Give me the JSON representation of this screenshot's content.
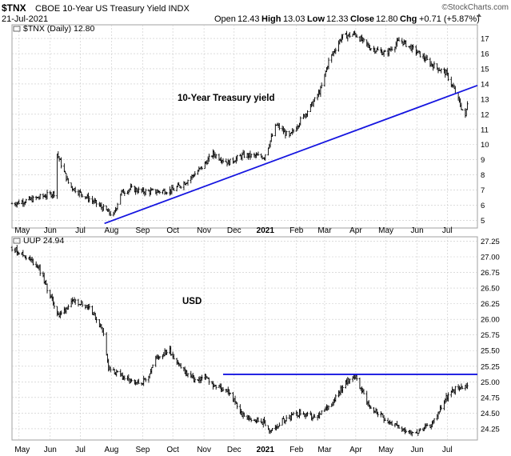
{
  "header": {
    "symbol": "$TNX",
    "description": "CBOE 10-Year US Treasury Yield INDX",
    "watermark": "©StockCharts.com",
    "date": "21-Jul-2021",
    "open_label": "Open",
    "open": "12.43",
    "high_label": "High",
    "high": "13.03",
    "low_label": "Low",
    "low": "12.33",
    "close_label": "Close",
    "close": "12.80",
    "chg_label": "Chg",
    "chg": "+0.71 (+5.87%)"
  },
  "x_axis": {
    "labels": [
      "May",
      "Jun",
      "Jul",
      "Aug",
      "Sep",
      "Oct",
      "Nov",
      "Dec",
      "2021",
      "Feb",
      "Mar",
      "Apr",
      "May",
      "Jun",
      "Jul"
    ]
  },
  "colors": {
    "price": "#000000",
    "trendline": "#1515e0",
    "grid": "#c8c8c8",
    "frame": "#a0a0a0",
    "chg_up": "#000000"
  },
  "chart_data": [
    {
      "type": "line",
      "legend": "$TNX (Daily) 12.80",
      "annotation": "10-Year Treasury yield",
      "ylim": [
        4.5,
        17.9
      ],
      "y_ticks": [
        5,
        6,
        7,
        8,
        9,
        10,
        11,
        12,
        13,
        14,
        15,
        16,
        17
      ],
      "grid": true,
      "x": [
        "2020-04-24",
        "2020-05-15",
        "2020-06-05",
        "2020-06-08",
        "2020-06-20",
        "2020-07-01",
        "2020-07-15",
        "2020-08-03",
        "2020-08-10",
        "2020-08-20",
        "2020-09-01",
        "2020-09-15",
        "2020-10-01",
        "2020-10-15",
        "2020-10-30",
        "2020-11-10",
        "2020-11-25",
        "2020-12-10",
        "2020-12-31",
        "2021-01-12",
        "2021-01-25",
        "2021-02-05",
        "2021-02-15",
        "2021-02-25",
        "2021-03-05",
        "2021-03-18",
        "2021-03-31",
        "2021-04-15",
        "2021-05-01",
        "2021-05-15",
        "2021-06-01",
        "2021-06-15",
        "2021-06-30",
        "2021-07-08",
        "2021-07-19",
        "2021-07-21"
      ],
      "values": [
        6.1,
        6.4,
        6.8,
        9.4,
        7.3,
        6.8,
        6.2,
        5.3,
        6.8,
        7.1,
        6.9,
        6.9,
        7.0,
        7.6,
        8.5,
        9.4,
        8.8,
        9.3,
        9.2,
        11.3,
        10.5,
        11.6,
        12.5,
        13.6,
        15.5,
        17.1,
        17.3,
        16.4,
        16.0,
        16.9,
        16.1,
        15.3,
        14.7,
        13.6,
        11.8,
        12.8
      ],
      "trendline": [
        {
          "x": "2020-07-25",
          "y": 4.8
        },
        {
          "x": "2021-07-31",
          "y": 13.9
        }
      ]
    },
    {
      "type": "line",
      "legend": "UUP 24.94",
      "annotation": "USD",
      "ylim": [
        24.07,
        27.32
      ],
      "y_ticks": [
        24.25,
        24.5,
        24.75,
        25.0,
        25.25,
        25.5,
        25.75,
        26.0,
        26.25,
        26.5,
        26.75,
        27.0,
        27.25
      ],
      "grid": true,
      "x": [
        "2020-04-24",
        "2020-05-08",
        "2020-05-20",
        "2020-06-03",
        "2020-06-10",
        "2020-06-18",
        "2020-06-26",
        "2020-07-10",
        "2020-07-24",
        "2020-07-29",
        "2020-08-10",
        "2020-08-25",
        "2020-09-05",
        "2020-09-15",
        "2020-09-28",
        "2020-10-10",
        "2020-10-25",
        "2020-11-01",
        "2020-11-10",
        "2020-11-25",
        "2020-12-10",
        "2020-12-31",
        "2021-01-06",
        "2021-01-20",
        "2021-02-05",
        "2021-02-20",
        "2021-03-05",
        "2021-03-20",
        "2021-03-31",
        "2021-04-15",
        "2021-05-01",
        "2021-05-15",
        "2021-06-01",
        "2021-06-15",
        "2021-06-30",
        "2021-07-10",
        "2021-07-21"
      ],
      "values": [
        27.15,
        27.0,
        26.85,
        26.3,
        26.05,
        26.2,
        26.3,
        26.2,
        25.8,
        25.2,
        25.1,
        24.95,
        25.05,
        25.4,
        25.5,
        25.2,
        25.0,
        25.1,
        24.95,
        24.85,
        24.45,
        24.35,
        24.2,
        24.4,
        24.5,
        24.4,
        24.6,
        24.95,
        25.1,
        24.6,
        24.4,
        24.25,
        24.2,
        24.3,
        24.75,
        24.9,
        24.94
      ],
      "trendline": [
        {
          "x": "2020-11-20",
          "y": 25.12
        },
        {
          "x": "2021-07-31",
          "y": 25.12
        }
      ]
    }
  ]
}
